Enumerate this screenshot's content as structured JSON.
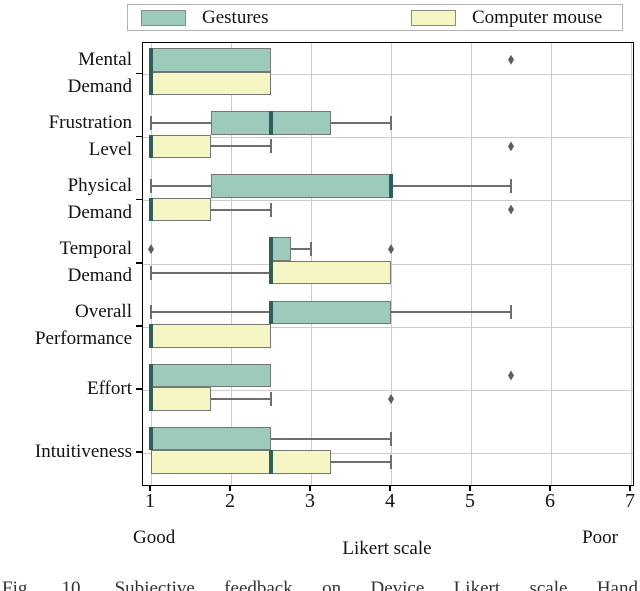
{
  "legend": {
    "items": [
      {
        "label": "Gestures",
        "color": "#9CCBBB"
      },
      {
        "label": "Computer mouse",
        "color": "#F6F6C4"
      }
    ]
  },
  "axis": {
    "x_ticks": [
      "1",
      "2",
      "3",
      "4",
      "5",
      "6",
      "7"
    ],
    "x_min_label": "Good",
    "x_max_label": "Poor",
    "xlabel": "Likert scale"
  },
  "caption_fragment": "Fig. 10. Subjective feedback on Device Likert scale Hand",
  "colors": {
    "gestures_fill": "#9CCBBB",
    "mouse_fill": "#F6F6C4",
    "box_border": "#767676",
    "median": "#305F58",
    "whisker": "#6e6e6e",
    "outlier": "#5e5e5e",
    "grid": "#cccccc"
  },
  "chart_data": {
    "type": "boxplot",
    "orientation": "horizontal",
    "title": "",
    "xlabel": "Likert scale",
    "x_range": [
      1,
      7
    ],
    "x_ticks": [
      1,
      2,
      3,
      4,
      5,
      6,
      7
    ],
    "grid": true,
    "legend_position": "top",
    "categories": [
      "Mental\nDemand",
      "Frustration\nLevel",
      "Physical\nDemand",
      "Temporal\nDemand",
      "Overall\nPerformance",
      "Effort",
      "Intuitiveness"
    ],
    "series": [
      {
        "name": "Gestures",
        "color": "#9CCBBB",
        "boxes": [
          {
            "whislo": 1,
            "q1": 1,
            "med": 1,
            "q3": 2.5,
            "whishi": 2.5,
            "outliers": [
              5.5
            ]
          },
          {
            "whislo": 1,
            "q1": 1.75,
            "med": 2.5,
            "q3": 3.25,
            "whishi": 4,
            "outliers": []
          },
          {
            "whislo": 1,
            "q1": 1.75,
            "med": 4,
            "q3": 4,
            "whishi": 5.5,
            "outliers": []
          },
          {
            "whislo": 2.5,
            "q1": 2.5,
            "med": 2.5,
            "q3": 2.75,
            "whishi": 3,
            "outliers": [
              1,
              4
            ]
          },
          {
            "whislo": 1,
            "q1": 2.5,
            "med": 2.5,
            "q3": 4,
            "whishi": 5.5,
            "outliers": []
          },
          {
            "whislo": 1,
            "q1": 1,
            "med": 1,
            "q3": 2.5,
            "whishi": 2.5,
            "outliers": [
              5.5
            ]
          },
          {
            "whislo": 1,
            "q1": 1,
            "med": 1,
            "q3": 2.5,
            "whishi": 4,
            "outliers": []
          }
        ]
      },
      {
        "name": "Computer mouse",
        "color": "#F6F6C4",
        "boxes": [
          {
            "whislo": 1,
            "q1": 1,
            "med": 1,
            "q3": 2.5,
            "whishi": 2.5,
            "outliers": []
          },
          {
            "whislo": 1,
            "q1": 1,
            "med": 1,
            "q3": 1.75,
            "whishi": 2.5,
            "outliers": [
              5.5
            ]
          },
          {
            "whislo": 1,
            "q1": 1,
            "med": 1,
            "q3": 1.75,
            "whishi": 2.5,
            "outliers": [
              5.5
            ]
          },
          {
            "whislo": 1,
            "q1": 2.5,
            "med": 2.5,
            "q3": 4,
            "whishi": 4,
            "outliers": []
          },
          {
            "whislo": 1,
            "q1": 1,
            "med": 1,
            "q3": 2.5,
            "whishi": 2.5,
            "outliers": []
          },
          {
            "whislo": 1,
            "q1": 1,
            "med": 1,
            "q3": 1.75,
            "whishi": 2.5,
            "outliers": [
              4
            ]
          },
          {
            "whislo": 1,
            "q1": 1,
            "med": 2.5,
            "q3": 3.25,
            "whishi": 4,
            "outliers": []
          }
        ]
      }
    ]
  }
}
